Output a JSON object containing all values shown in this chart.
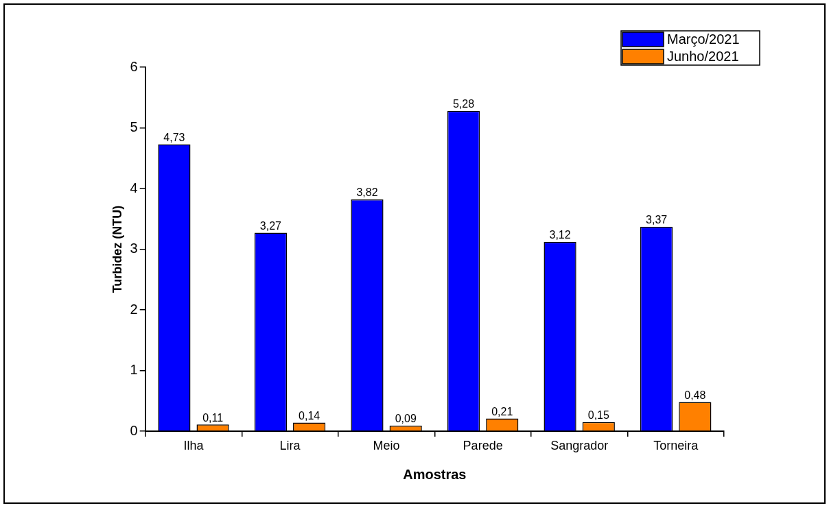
{
  "chart_data": {
    "type": "bar",
    "xlabel": "Amostras",
    "ylabel": "Turbidez (NTU)",
    "categories": [
      "Ilha",
      "Lira",
      "Meio",
      "Parede",
      "Sangrador",
      "Torneira"
    ],
    "series": [
      {
        "name": "Março/2021",
        "color": "#0000ff",
        "values": [
          4.73,
          3.27,
          3.82,
          5.28,
          3.12,
          3.37
        ],
        "value_labels": [
          "4,73",
          "3,27",
          "3,82",
          "5,28",
          "3,12",
          "3,37"
        ]
      },
      {
        "name": "Junho/2021",
        "color": "#ff8000",
        "values": [
          0.11,
          0.14,
          0.09,
          0.21,
          0.15,
          0.48
        ],
        "value_labels": [
          "0,11",
          "0,14",
          "0,09",
          "0,21",
          "0,15",
          "0,48"
        ]
      }
    ],
    "ylim": [
      0,
      6
    ],
    "yticks": [
      0,
      1,
      2,
      3,
      4,
      5,
      6
    ],
    "grid": false,
    "legend": "top right"
  }
}
